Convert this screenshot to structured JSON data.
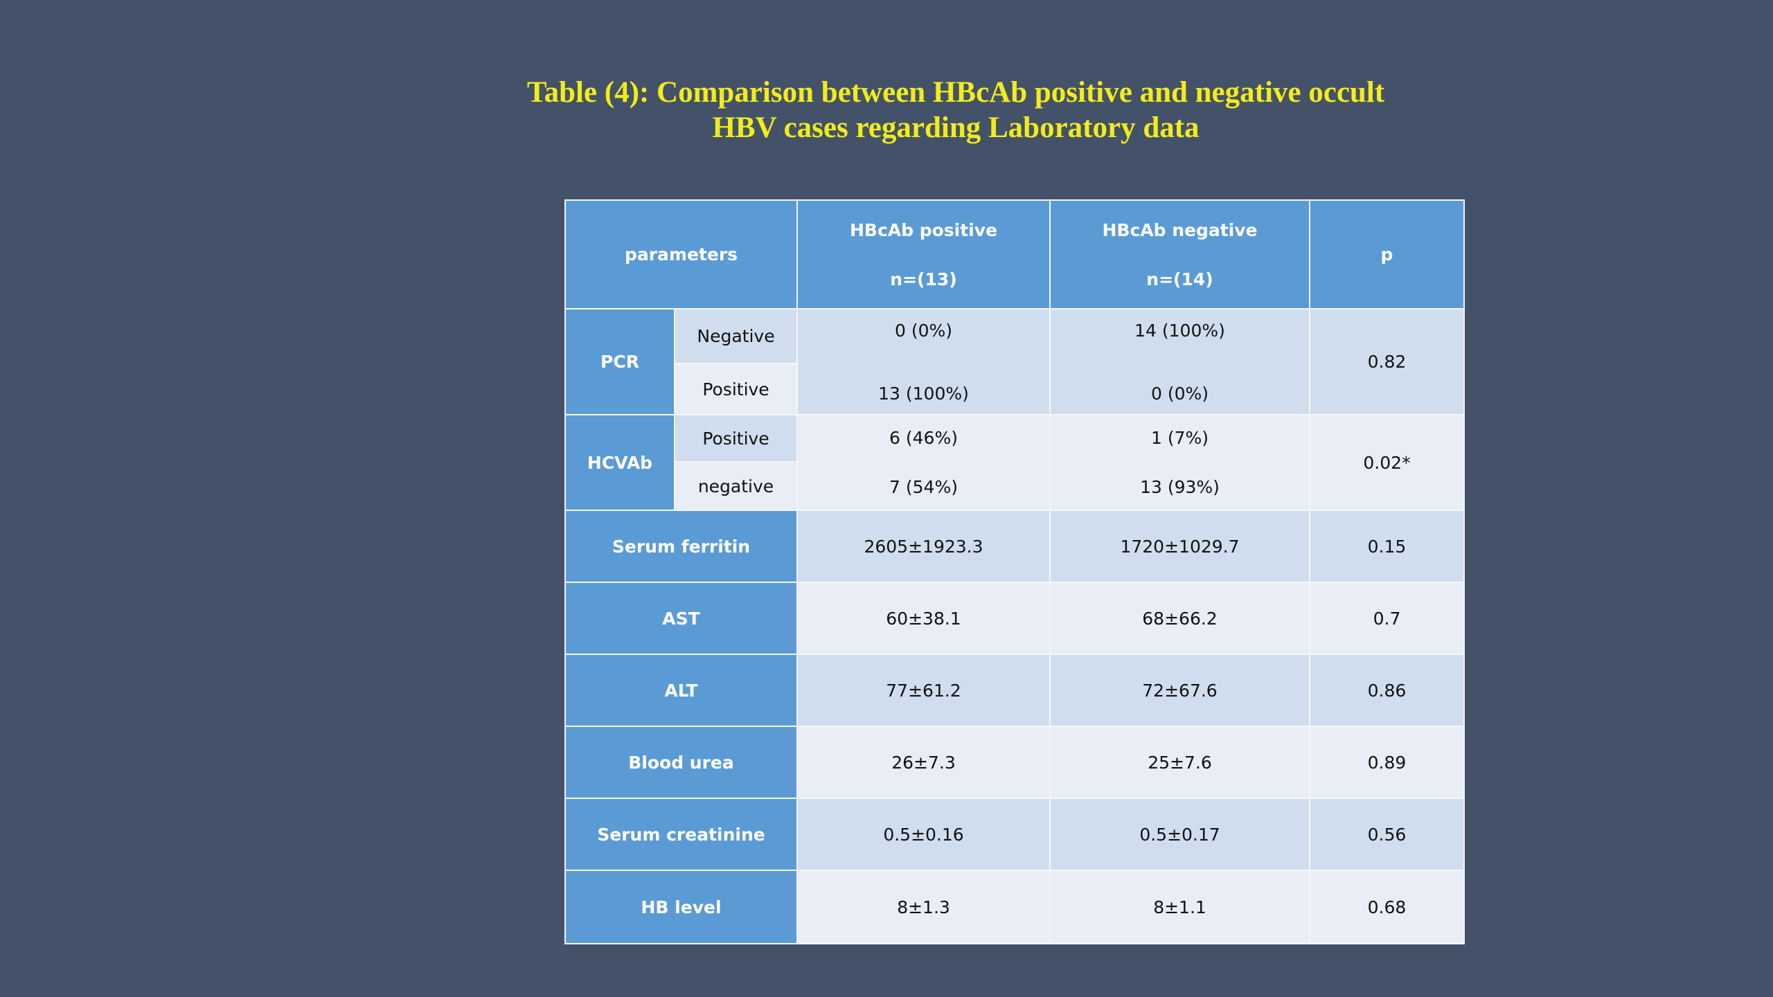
{
  "title": {
    "line1": "Table (4): Comparison between HBcAb positive and negative occult",
    "line2": "HBV cases regarding Laboratory data"
  },
  "table": {
    "header": {
      "parameters": "parameters",
      "pos_label": "HBcAb positive",
      "pos_n": "n=(13)",
      "neg_label": "HBcAb negative",
      "neg_n": "n=(14)",
      "p": "p"
    },
    "pcr": {
      "label": "PCR",
      "sub1": "Negative",
      "sub2": "Positive",
      "pos1": "0 (0%)",
      "pos2": "13 (100%)",
      "neg1": "14 (100%)",
      "neg2": "0 (0%)",
      "p": "0.82"
    },
    "hcvab": {
      "label": "HCVAb",
      "sub1": "Positive",
      "sub2": "negative",
      "pos1": "6 (46%)",
      "pos2": "7 (54%)",
      "neg1": "1 (7%)",
      "neg2": "13 (93%)",
      "p": "0.02*"
    },
    "rows": [
      {
        "label": "Serum ferritin",
        "pos": "2605±1923.3",
        "neg": "1720±1029.7",
        "p": "0.15"
      },
      {
        "label": "AST",
        "pos": "60±38.1",
        "neg": "68±66.2",
        "p": "0.7"
      },
      {
        "label": "ALT",
        "pos": "77±61.2",
        "neg": "72±67.6",
        "p": "0.86"
      },
      {
        "label": "Blood urea",
        "pos": "26±7.3",
        "neg": "25±7.6",
        "p": "0.89"
      },
      {
        "label": "Serum creatinine",
        "pos": "0.5±0.16",
        "neg": "0.5±0.17",
        "p": "0.56"
      },
      {
        "label": "HB level",
        "pos": "8±1.3",
        "neg": "8±1.1",
        "p": "0.68"
      }
    ]
  },
  "colors": {
    "background": "#445269",
    "title": "#f2ec1a",
    "header": "#5b9bd5",
    "row_dark": "#d0ddee",
    "row_light": "#e9eef6"
  }
}
